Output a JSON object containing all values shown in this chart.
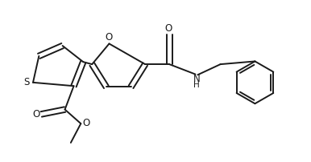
{
  "bg_color": "#ffffff",
  "line_color": "#1a1a1a",
  "line_width": 1.4,
  "figsize": [
    3.86,
    2.02
  ],
  "dpi": 100,
  "xlim": [
    0.0,
    10.5
  ],
  "ylim": [
    0.5,
    5.8
  ]
}
